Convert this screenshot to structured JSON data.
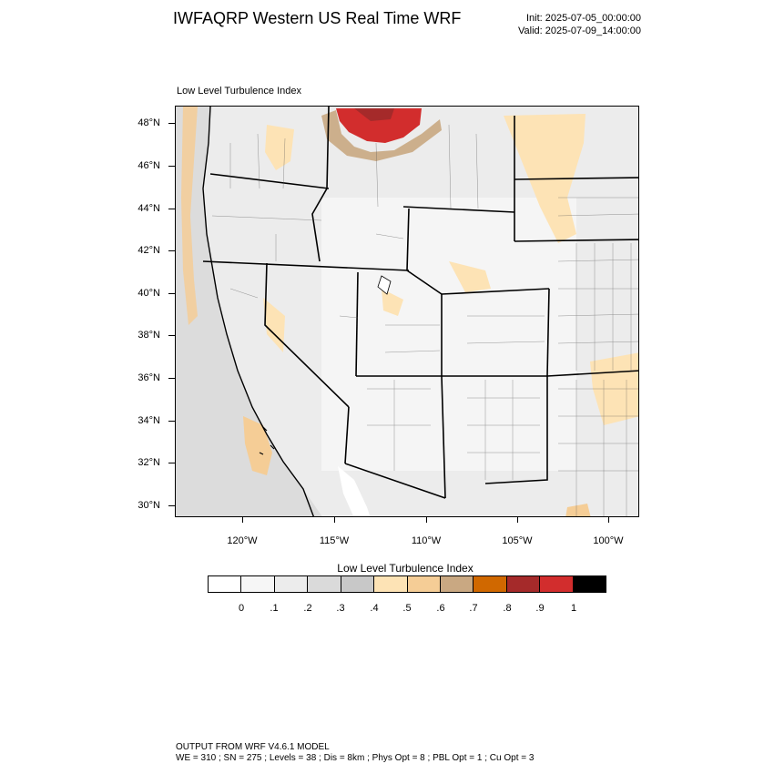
{
  "header": {
    "title": "IWFAQRP Western US Real Time WRF",
    "init": "Init: 2025-07-05_00:00:00",
    "valid": "Valid: 2025-07-09_14:00:00"
  },
  "map": {
    "field_label": "Low Level Turbulence Index",
    "lat_labels": [
      "48°N",
      "46°N",
      "44°N",
      "42°N",
      "40°N",
      "38°N",
      "36°N",
      "34°N",
      "32°N",
      "30°N"
    ],
    "lon_labels": [
      "120°W",
      "115°W",
      "110°W",
      "105°W",
      "100°W"
    ]
  },
  "colorbar": {
    "title": "Low Level Turbulence Index",
    "labels": [
      "0",
      ".1",
      ".2",
      ".3",
      ".4",
      ".5",
      ".6",
      ".7",
      ".8",
      ".9",
      "1"
    ],
    "colors": [
      "#ffffff",
      "#f6f6f6",
      "#ececec",
      "#dadada",
      "#c8c8c8",
      "#fde3b5",
      "#f5cd96",
      "#c9a882",
      "#d06800",
      "#a52a2a",
      "#d22d2d",
      "#000000"
    ]
  },
  "footer": {
    "line1": "OUTPUT FROM WRF V4.6.1 MODEL",
    "line2": "WE = 310 ; SN = 275 ; Levels = 38 ; Dis = 8km ; Phys Opt = 8 ; PBL Opt = 1 ; Cu Opt = 3"
  }
}
